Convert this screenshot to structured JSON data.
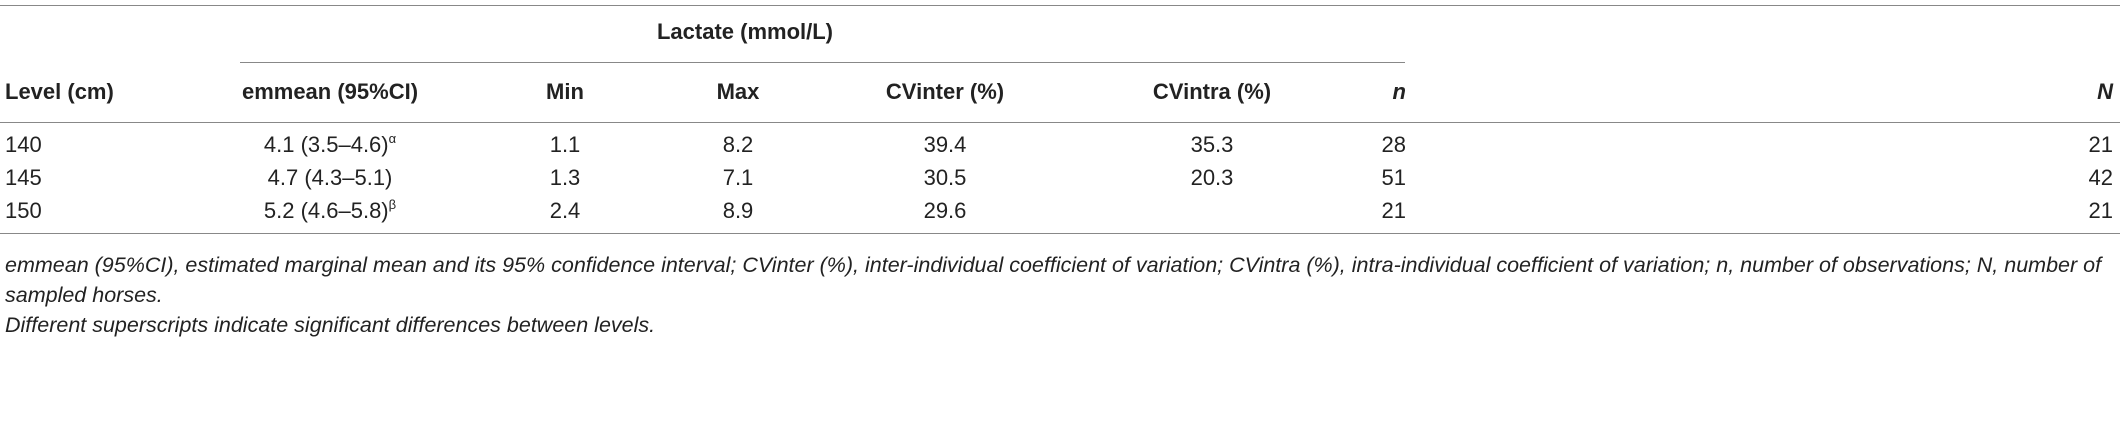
{
  "table": {
    "group_header": "Lactate (mmol/L)",
    "columns": [
      "Level (cm)",
      "emmean (95%CI)",
      "Min",
      "Max",
      "CVinter (%)",
      "CVintra (%)",
      "n",
      "N"
    ],
    "rows": [
      [
        "140",
        {
          "text": "4.1 (3.5–4.6)",
          "sup": "α"
        },
        "1.1",
        "8.2",
        "39.4",
        "35.3",
        "28",
        "21"
      ],
      [
        "145",
        {
          "text": "4.7 (4.3–5.1)"
        },
        "1.3",
        "7.1",
        "30.5",
        "20.3",
        "51",
        "42"
      ],
      [
        "150",
        {
          "text": "5.2 (4.6–5.8)",
          "sup": "β"
        },
        "2.4",
        "8.9",
        "29.6",
        null,
        "21",
        "21"
      ]
    ]
  },
  "footnotes": [
    "emmean (95%CI), estimated marginal mean and its 95% confidence interval; CVinter (%), inter-individual coefficient of variation; CVintra (%), intra-individual coefficient of variation; n, number of observations; N, number of sampled horses.",
    "Different superscripts indicate significant differences between levels."
  ]
}
